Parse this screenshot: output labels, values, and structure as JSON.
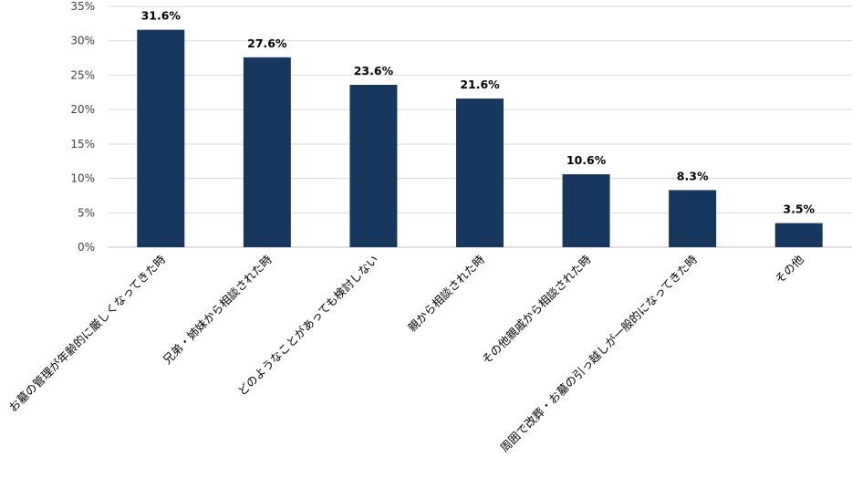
{
  "chart_data": {
    "type": "bar",
    "title": "",
    "xlabel": "",
    "ylabel": "",
    "categories": [
      "お墓の管理が年齢的に厳しくなってきた時",
      "兄弟・姉妹から相談された時",
      "どのようなことがあっても検討しない",
      "親から相談された時",
      "その他親戚から相談された時",
      "周囲で改葬・お墓の引っ越しが一般的になってきた時",
      "その他"
    ],
    "values": [
      31.6,
      27.6,
      23.6,
      21.6,
      10.6,
      8.3,
      3.5
    ],
    "data_labels": [
      "31.6%",
      "27.6%",
      "23.6%",
      "21.6%",
      "10.6%",
      "8.3%",
      "3.5%"
    ],
    "ylim": [
      0,
      35
    ],
    "yticks": [
      0,
      5,
      10,
      15,
      20,
      25,
      30,
      35
    ],
    "ytick_labels": [
      "0%",
      "5%",
      "10%",
      "15%",
      "20%",
      "25%",
      "30%",
      "35%"
    ],
    "grid": true,
    "legend": "none",
    "bar_color": "#17375e"
  }
}
